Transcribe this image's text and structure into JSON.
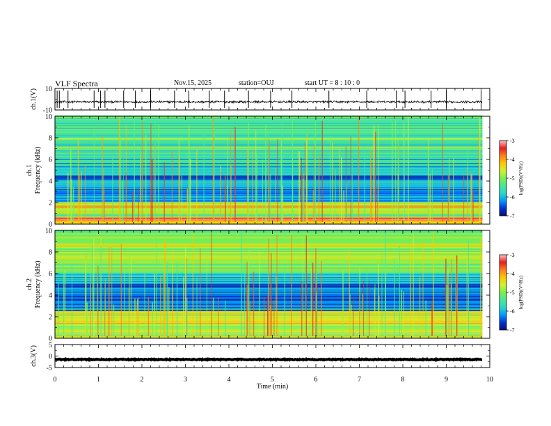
{
  "header": {
    "title": "VLF Spectra",
    "date": "Nov.15, 2025",
    "station": "station=OUJ",
    "start_ut": "start  UT =  8 : 10 : 0"
  },
  "colors": {
    "colormap": [
      "#0a0a78",
      "#0032d2",
      "#009bff",
      "#28d7c8",
      "#4be696",
      "#7df04b",
      "#d2f032",
      "#ffc800",
      "#ff7d1e",
      "#e61e1e",
      "#ffc8c8"
    ],
    "trace": "#000000",
    "axis": "#000000"
  },
  "chart_data": [
    {
      "type": "line",
      "name": "ch.1 waveform",
      "ylabel": "ch.1(V)",
      "ylim": [
        -10,
        10
      ],
      "yticks": [
        "10",
        "-10"
      ],
      "xlim": [
        0,
        10
      ],
      "baseline": -2.5,
      "noise_amplitude": 1.0,
      "spikes_min": [
        0.05,
        0.1,
        0.3,
        0.9,
        1.05,
        1.15,
        1.58,
        1.85,
        2.2,
        2.75,
        3.08,
        3.55,
        3.9,
        4.45,
        4.96,
        5.45,
        6.3,
        7.17,
        7.85,
        8.05,
        8.65,
        9.0,
        9.8
      ],
      "spike_peak_v": 8
    },
    {
      "type": "heatmap",
      "name": "ch.1 spectrogram",
      "ylabel": "ch.1\nFrequency (kHz)",
      "ylim": [
        0,
        10
      ],
      "yticks": [
        "0",
        "2",
        "4",
        "6",
        "8",
        "10"
      ],
      "xlim": [
        0,
        9.83
      ],
      "colorbar": {
        "range": [
          -7,
          -3
        ],
        "ticks": [
          "-3",
          "-4",
          "-5",
          "-6",
          "-7"
        ],
        "label": "log(PSD)(V²/Hz)"
      },
      "bands": [
        {
          "f_lo": 0.0,
          "f_hi": 0.35,
          "value": -4.2
        },
        {
          "f_lo": 0.35,
          "f_hi": 0.6,
          "value": -3.4
        },
        {
          "f_lo": 0.6,
          "f_hi": 1.2,
          "value": -5.0
        },
        {
          "f_lo": 1.2,
          "f_hi": 2.0,
          "value": -4.4
        },
        {
          "f_lo": 2.0,
          "f_hi": 4.5,
          "value": -6.2
        },
        {
          "f_lo": 4.5,
          "f_hi": 6.0,
          "value": -5.8
        },
        {
          "f_lo": 6.0,
          "f_hi": 10.0,
          "value": -5.3
        }
      ],
      "sferic_density": 0.6
    },
    {
      "type": "heatmap",
      "name": "ch.2 spectrogram",
      "ylabel": "ch.2\nFrequency (kHz)",
      "ylim": [
        0,
        10
      ],
      "yticks": [
        "0",
        "2",
        "4",
        "6",
        "8",
        "10"
      ],
      "xlim": [
        0,
        9.83
      ],
      "colorbar": {
        "range": [
          -7,
          -3
        ],
        "ticks": [
          "-3",
          "-4",
          "-5",
          "-6",
          "-7"
        ],
        "label": "log(PSD)(V²/Hz)"
      },
      "bands": [
        {
          "f_lo": 0.0,
          "f_hi": 0.5,
          "value": -4.8
        },
        {
          "f_lo": 0.5,
          "f_hi": 2.5,
          "value": -4.6
        },
        {
          "f_lo": 2.5,
          "f_hi": 5.0,
          "value": -6.3
        },
        {
          "f_lo": 5.0,
          "f_hi": 6.0,
          "value": -5.9
        },
        {
          "f_lo": 6.0,
          "f_hi": 10.0,
          "value": -5.0
        }
      ],
      "sferic_density": 0.6
    },
    {
      "type": "line",
      "name": "ch.3 waveform",
      "ylabel": "ch.3(V)",
      "ylim": [
        -5,
        5
      ],
      "yticks": [
        "5",
        "0",
        "-5"
      ],
      "xlim": [
        0,
        10
      ],
      "baseline": -1.5,
      "noise_amplitude": 0.2
    }
  ],
  "xaxis": {
    "label": "Time (min)",
    "range": [
      0,
      10
    ],
    "ticks": [
      "0",
      "1",
      "2",
      "3",
      "4",
      "5",
      "6",
      "7",
      "8",
      "9",
      "10"
    ]
  }
}
